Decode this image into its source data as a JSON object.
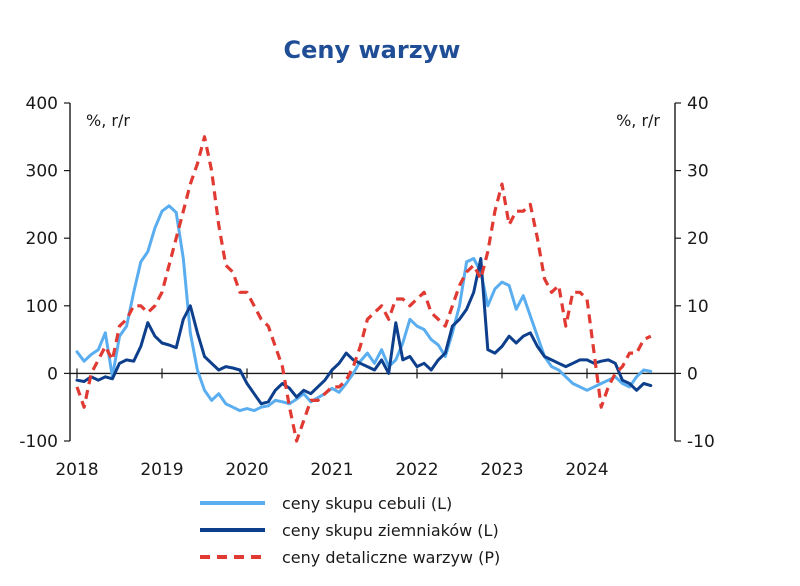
{
  "chart_data": {
    "type": "line",
    "title": "Ceny warzyw",
    "left_axis": {
      "unit_label": "%, r/r",
      "ylim": [
        -100,
        400
      ],
      "ticks": [
        400,
        300,
        200,
        100,
        0,
        -100
      ],
      "tick_labels": [
        "400",
        "300",
        "200",
        "100",
        "0",
        "-100"
      ]
    },
    "right_axis": {
      "unit_label": "%, r/r",
      "ylim": [
        -10,
        40
      ],
      "ticks": [
        40,
        30,
        20,
        10,
        0,
        -10
      ],
      "tick_labels": [
        "40",
        "30",
        "20",
        "10",
        "0",
        "-10"
      ]
    },
    "x_axis": {
      "xlim": [
        2018.0,
        2024.85
      ],
      "ticks": [
        2018,
        2019,
        2020,
        2021,
        2022,
        2023,
        2024
      ],
      "tick_labels": [
        "2018",
        "2019",
        "2020",
        "2021",
        "2022",
        "2023",
        "2024"
      ]
    },
    "series": [
      {
        "name": "ceny skupu cebuli (L)",
        "axis": "left",
        "color": "#5aaef0",
        "style": "solid",
        "x": [
          2018.0,
          2018.083,
          2018.167,
          2018.25,
          2018.333,
          2018.417,
          2018.5,
          2018.583,
          2018.667,
          2018.75,
          2018.833,
          2018.917,
          2019.0,
          2019.083,
          2019.167,
          2019.25,
          2019.333,
          2019.417,
          2019.5,
          2019.583,
          2019.667,
          2019.75,
          2019.833,
          2019.917,
          2020.0,
          2020.083,
          2020.167,
          2020.25,
          2020.333,
          2020.417,
          2020.5,
          2020.583,
          2020.667,
          2020.75,
          2020.833,
          2020.917,
          2021.0,
          2021.083,
          2021.167,
          2021.25,
          2021.333,
          2021.417,
          2021.5,
          2021.583,
          2021.667,
          2021.75,
          2021.833,
          2021.917,
          2022.0,
          2022.083,
          2022.167,
          2022.25,
          2022.333,
          2022.417,
          2022.5,
          2022.583,
          2022.667,
          2022.75,
          2022.833,
          2022.917,
          2023.0,
          2023.083,
          2023.167,
          2023.25,
          2023.333,
          2023.417,
          2023.5,
          2023.583,
          2023.667,
          2023.75,
          2023.833,
          2023.917,
          2024.0,
          2024.083,
          2024.167,
          2024.25,
          2024.333,
          2024.417,
          2024.5,
          2024.583,
          2024.667,
          2024.75
        ],
        "values": [
          32,
          18,
          28,
          35,
          60,
          -5,
          55,
          70,
          120,
          165,
          180,
          215,
          240,
          248,
          238,
          170,
          60,
          5,
          -25,
          -40,
          -30,
          -45,
          -50,
          -55,
          -52,
          -55,
          -50,
          -48,
          -40,
          -42,
          -45,
          -38,
          -30,
          -42,
          -36,
          -30,
          -22,
          -28,
          -15,
          0,
          18,
          30,
          15,
          35,
          10,
          20,
          45,
          80,
          70,
          65,
          50,
          42,
          25,
          60,
          100,
          165,
          170,
          150,
          100,
          125,
          135,
          130,
          95,
          115,
          85,
          55,
          25,
          10,
          5,
          -5,
          -15,
          -20,
          -25,
          -20,
          -15,
          -10,
          -5,
          -15,
          -20,
          -5,
          5,
          3
        ]
      },
      {
        "name": "ceny skupu ziemniaków (L)",
        "axis": "left",
        "color": "#0d3f8c",
        "style": "solid",
        "x": [
          2018.0,
          2018.083,
          2018.167,
          2018.25,
          2018.333,
          2018.417,
          2018.5,
          2018.583,
          2018.667,
          2018.75,
          2018.833,
          2018.917,
          2019.0,
          2019.083,
          2019.167,
          2019.25,
          2019.333,
          2019.417,
          2019.5,
          2019.583,
          2019.667,
          2019.75,
          2019.833,
          2019.917,
          2020.0,
          2020.083,
          2020.167,
          2020.25,
          2020.333,
          2020.417,
          2020.5,
          2020.583,
          2020.667,
          2020.75,
          2020.833,
          2020.917,
          2021.0,
          2021.083,
          2021.167,
          2021.25,
          2021.333,
          2021.417,
          2021.5,
          2021.583,
          2021.667,
          2021.75,
          2021.833,
          2021.917,
          2022.0,
          2022.083,
          2022.167,
          2022.25,
          2022.333,
          2022.417,
          2022.5,
          2022.583,
          2022.667,
          2022.75,
          2022.833,
          2022.917,
          2023.0,
          2023.083,
          2023.167,
          2023.25,
          2023.333,
          2023.417,
          2023.5,
          2023.583,
          2023.667,
          2023.75,
          2023.833,
          2023.917,
          2024.0,
          2024.083,
          2024.167,
          2024.25,
          2024.333,
          2024.417,
          2024.5,
          2024.583,
          2024.667,
          2024.75
        ],
        "values": [
          -10,
          -12,
          -5,
          -10,
          -5,
          -8,
          15,
          20,
          18,
          40,
          75,
          55,
          45,
          42,
          38,
          80,
          100,
          60,
          25,
          15,
          5,
          10,
          8,
          5,
          -15,
          -30,
          -45,
          -42,
          -25,
          -15,
          -22,
          -35,
          -25,
          -30,
          -20,
          -10,
          5,
          15,
          30,
          20,
          15,
          10,
          5,
          20,
          0,
          75,
          20,
          25,
          10,
          15,
          5,
          20,
          30,
          70,
          80,
          95,
          120,
          170,
          35,
          30,
          40,
          55,
          45,
          55,
          60,
          40,
          25,
          20,
          15,
          10,
          15,
          20,
          20,
          15,
          18,
          20,
          15,
          -10,
          -15,
          -25,
          -15,
          -18
        ]
      },
      {
        "name": "ceny detaliczne warzyw (P)",
        "axis": "right",
        "color": "#e03a33",
        "style": "dashed",
        "x": [
          2018.0,
          2018.083,
          2018.167,
          2018.25,
          2018.333,
          2018.417,
          2018.5,
          2018.583,
          2018.667,
          2018.75,
          2018.833,
          2018.917,
          2019.0,
          2019.083,
          2019.167,
          2019.25,
          2019.333,
          2019.417,
          2019.5,
          2019.583,
          2019.667,
          2019.75,
          2019.833,
          2019.917,
          2020.0,
          2020.083,
          2020.167,
          2020.25,
          2020.333,
          2020.417,
          2020.5,
          2020.583,
          2020.667,
          2020.75,
          2020.833,
          2020.917,
          2021.0,
          2021.083,
          2021.167,
          2021.25,
          2021.333,
          2021.417,
          2021.5,
          2021.583,
          2021.667,
          2021.75,
          2021.833,
          2021.917,
          2022.0,
          2022.083,
          2022.167,
          2022.25,
          2022.333,
          2022.417,
          2022.5,
          2022.583,
          2022.667,
          2022.75,
          2022.833,
          2022.917,
          2023.0,
          2023.083,
          2023.167,
          2023.25,
          2023.333,
          2023.417,
          2023.5,
          2023.583,
          2023.667,
          2023.75,
          2023.833,
          2023.917,
          2024.0,
          2024.083,
          2024.167,
          2024.25,
          2024.333,
          2024.417,
          2024.5,
          2024.583,
          2024.667,
          2024.75
        ],
        "values": [
          -2,
          -5,
          0,
          2,
          4,
          2,
          7,
          8,
          10,
          10,
          9,
          10,
          12,
          16,
          20,
          24,
          28,
          31,
          35,
          30,
          22,
          16,
          15,
          12,
          12,
          10,
          8,
          7,
          4,
          1,
          -5,
          -10,
          -7,
          -4,
          -4,
          -3,
          -2,
          -2,
          -1,
          1,
          4,
          8,
          9,
          10,
          8,
          11,
          11,
          10,
          11,
          12,
          9,
          8,
          7,
          10,
          13,
          15,
          16,
          14,
          18,
          24,
          28,
          22,
          24,
          24,
          25,
          20,
          14,
          12,
          13,
          7,
          12,
          12,
          11,
          3,
          -5,
          -2,
          0,
          1,
          3,
          3,
          5,
          5.5
        ]
      }
    ],
    "legend": {
      "placement": "bottom-center"
    },
    "grid": false
  },
  "colors": {
    "title": "#1f4e96",
    "axes": "#1a1a1a"
  }
}
